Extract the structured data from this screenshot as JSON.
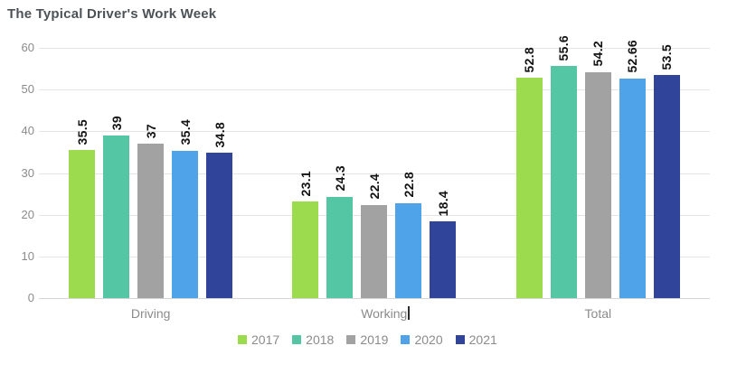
{
  "chart_data": {
    "type": "bar",
    "title": "The Typical Driver's Work Week",
    "categories": [
      "Driving",
      "Working",
      "Total"
    ],
    "series": [
      {
        "name": "2017",
        "color": "#9bdb4d",
        "values": [
          35.5,
          23.1,
          52.8
        ],
        "labels": [
          "35.5",
          "23.1",
          "52.8"
        ]
      },
      {
        "name": "2018",
        "color": "#55c6a4",
        "values": [
          39,
          24.3,
          55.6
        ],
        "labels": [
          "39",
          "24.3",
          "55.6"
        ]
      },
      {
        "name": "2019",
        "color": "#a2a2a2",
        "values": [
          37,
          22.4,
          54.2
        ],
        "labels": [
          "37",
          "22.4",
          "54.2"
        ]
      },
      {
        "name": "2020",
        "color": "#4fa3e9",
        "values": [
          35.4,
          22.8,
          52.66
        ],
        "labels": [
          "35.4",
          "22.8",
          "52.66"
        ]
      },
      {
        "name": "2021",
        "color": "#304499",
        "values": [
          34.8,
          18.4,
          53.5
        ],
        "labels": [
          "34.8",
          "18.4",
          "53.5"
        ]
      }
    ],
    "xlabel": "",
    "ylabel": "",
    "ylim": [
      0,
      60
    ],
    "yticks": [
      0,
      10,
      20,
      30,
      40,
      50,
      60
    ],
    "grid": true,
    "legend_position": "bottom",
    "value_labels_rotated": true,
    "text_cursor_after_category": "Working"
  },
  "colors": {
    "background": "#ffffff",
    "title_text": "#4d5257",
    "axis_text": "#8b8b8b",
    "gridline": "#e4e4e4",
    "axis_line": "#d5d5d5",
    "value_label_text": "#121212"
  }
}
